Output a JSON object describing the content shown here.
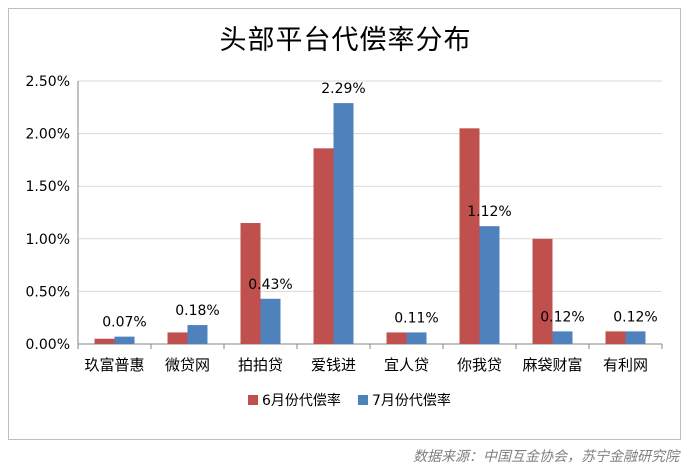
{
  "chart_data": {
    "type": "bar",
    "title": "头部平台代偿率分布",
    "categories": [
      "玖富普惠",
      "微贷网",
      "拍拍贷",
      "爱钱进",
      "宜人贷",
      "你我贷",
      "麻袋财富",
      "有利网"
    ],
    "series": [
      {
        "name": "6月份代偿率",
        "color": "#c0504d",
        "values": [
          0.05,
          0.11,
          1.15,
          1.86,
          0.11,
          2.05,
          1.0,
          0.12
        ]
      },
      {
        "name": "7月份代偿率",
        "color": "#4f81bd",
        "values": [
          0.07,
          0.18,
          0.43,
          2.29,
          0.11,
          1.12,
          0.12,
          0.12
        ],
        "labels": [
          "0.07%",
          "0.18%",
          "0.43%",
          "2.29%",
          "0.11%",
          "1.12%",
          "0.12%",
          "0.12%"
        ]
      }
    ],
    "yticks": [
      "0.00%",
      "0.50%",
      "1.00%",
      "1.50%",
      "2.00%",
      "2.50%"
    ],
    "ylim": [
      0,
      2.5
    ],
    "grid": true,
    "legend": "bottom"
  },
  "source": "数据来源：中国互金协会，苏宁金融研究院"
}
